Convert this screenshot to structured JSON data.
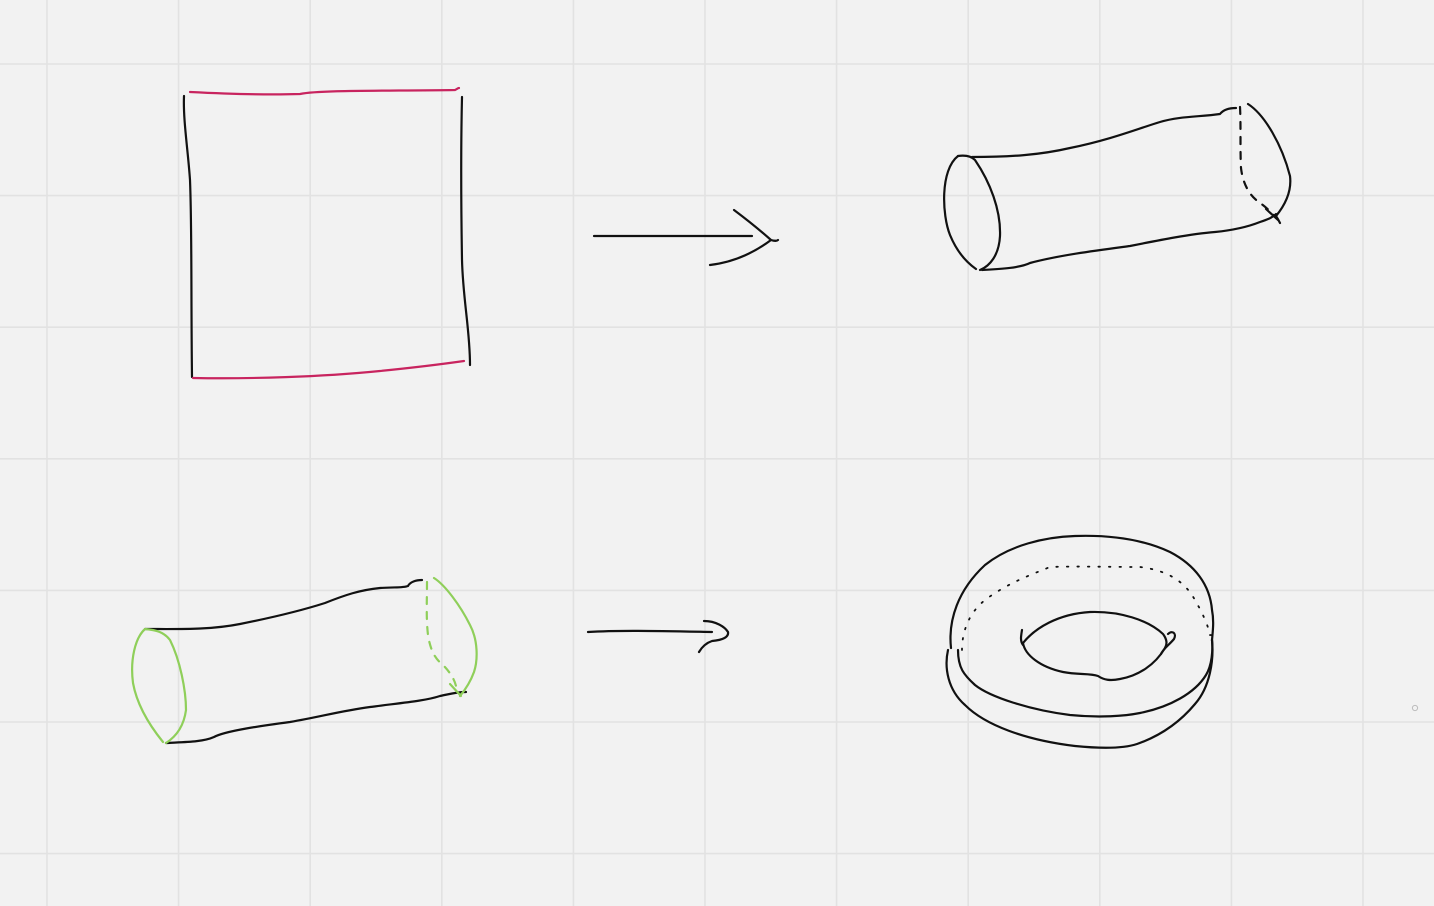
{
  "canvas": {
    "background": "#f2f2f2",
    "grid_line_color": "#e2e2e2"
  },
  "colors": {
    "ink": "#111111",
    "highlight_edge": "#c8245f",
    "glued_edge": "#8fcf5a"
  },
  "diagram": {
    "description_free": true,
    "steps": [
      {
        "from": "square",
        "to": "cylinder"
      },
      {
        "from": "cylinder",
        "to": "torus"
      }
    ]
  }
}
